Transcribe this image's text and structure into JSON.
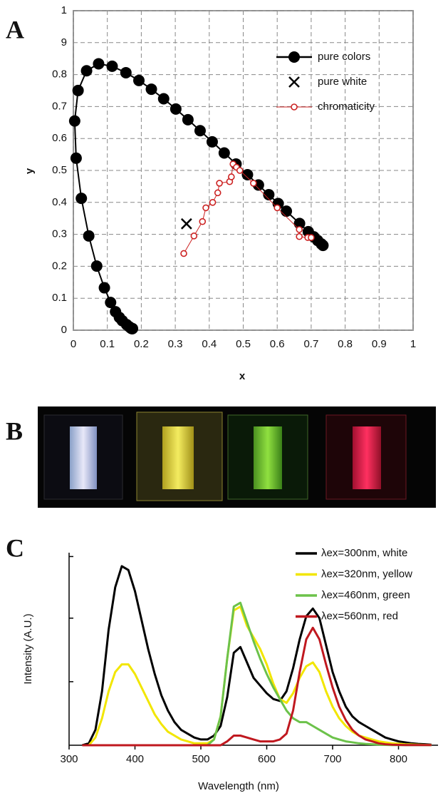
{
  "chart_data": [
    {
      "type": "line",
      "panel_label": "A",
      "xlabel": "x",
      "ylabel": "y",
      "xlim": [
        0,
        1
      ],
      "ylim": [
        0,
        1
      ],
      "xticks": [
        0,
        0.1,
        0.2,
        0.3,
        0.4,
        0.5,
        0.6,
        0.7,
        0.8,
        0.9,
        1
      ],
      "yticks": [
        0,
        0.1,
        0.2,
        0.3,
        0.4,
        0.5,
        0.6,
        0.7,
        0.8,
        {
          "value": 0.9,
          "label": "9"
        },
        1
      ],
      "grid": true,
      "legend": "upper right",
      "series": [
        {
          "name": "pure colors",
          "color": "#000000",
          "marker": "circle",
          "line": true,
          "x": [
            0.1741,
            0.1733,
            0.1714,
            0.1689,
            0.1644,
            0.1566,
            0.144,
            0.1355,
            0.1241,
            0.1096,
            0.0913,
            0.0687,
            0.0454,
            0.0235,
            0.0082,
            0.0039,
            0.0139,
            0.0389,
            0.0743,
            0.1142,
            0.1547,
            0.1929,
            0.2296,
            0.2658,
            0.3016,
            0.3373,
            0.3731,
            0.4087,
            0.4441,
            0.4788,
            0.5125,
            0.5448,
            0.5752,
            0.6029,
            0.627,
            0.6658,
            0.6915,
            0.7079,
            0.719,
            0.73,
            0.7347
          ],
          "values": [
            0.005,
            0.0048,
            0.0051,
            0.0069,
            0.0109,
            0.0177,
            0.0297,
            0.0399,
            0.0578,
            0.0868,
            0.1327,
            0.2007,
            0.295,
            0.4127,
            0.5384,
            0.6548,
            0.7502,
            0.812,
            0.8338,
            0.8262,
            0.8059,
            0.7816,
            0.7543,
            0.7243,
            0.6923,
            0.6589,
            0.6245,
            0.5896,
            0.5547,
            0.5202,
            0.4866,
            0.4544,
            0.4242,
            0.3965,
            0.3725,
            0.334,
            0.3083,
            0.292,
            0.2809,
            0.27,
            0.2653
          ]
        },
        {
          "name": "pure white",
          "color": "#000000",
          "marker": "x",
          "line": false,
          "x": [
            0.333
          ],
          "values": [
            0.333
          ]
        },
        {
          "name": "chromaticity",
          "color": "#cc2222",
          "marker": "open-circle",
          "line": true,
          "x": [
            0.325,
            0.355,
            0.38,
            0.39,
            0.41,
            0.425,
            0.43,
            0.46,
            0.465,
            0.47,
            0.48,
            0.49,
            0.53,
            0.6,
            0.665,
            0.665,
            0.69,
            0.7
          ],
          "values": [
            0.24,
            0.295,
            0.34,
            0.383,
            0.4,
            0.43,
            0.46,
            0.465,
            0.48,
            0.52,
            0.51,
            0.5,
            0.46,
            0.383,
            0.315,
            0.293,
            0.29,
            0.29
          ]
        }
      ]
    },
    {
      "type": "line",
      "panel_label": "C",
      "xlabel": "Wavelength (nm)",
      "ylabel": "Intensity (A.U.)",
      "xlim": [
        300,
        860
      ],
      "ylim": [
        0,
        100
      ],
      "xticks": [
        300,
        400,
        500,
        600,
        700,
        800
      ],
      "grid": false,
      "legend": "upper right",
      "x": [
        320,
        330,
        340,
        350,
        360,
        370,
        380,
        390,
        400,
        410,
        420,
        430,
        440,
        450,
        460,
        470,
        480,
        490,
        500,
        510,
        520,
        530,
        540,
        550,
        560,
        570,
        580,
        590,
        600,
        610,
        620,
        630,
        640,
        650,
        660,
        670,
        680,
        690,
        700,
        710,
        720,
        730,
        740,
        750,
        760,
        770,
        780,
        790,
        800,
        810,
        820,
        830,
        840,
        850
      ],
      "series": [
        {
          "name": "λex=300nm, white",
          "color": "#000000",
          "values": [
            0,
            1,
            8,
            28,
            60,
            82,
            93,
            91,
            80,
            65,
            50,
            37,
            26,
            18,
            12,
            8,
            6,
            4,
            3,
            3,
            5,
            10,
            25,
            48,
            51,
            43,
            35,
            31,
            27,
            24,
            23,
            28,
            40,
            55,
            67,
            71,
            66,
            52,
            38,
            28,
            20,
            15,
            12,
            10,
            8,
            6,
            4,
            3,
            2,
            1.5,
            1,
            0.7,
            0.5,
            0.3
          ]
        },
        {
          "name": "λex=320nm, yellow",
          "color": "#f2e600",
          "values": [
            0,
            0,
            4,
            14,
            28,
            38,
            42,
            42,
            37,
            30,
            23,
            16,
            11,
            7,
            5,
            3,
            2,
            1,
            1,
            1,
            3,
            15,
            45,
            70,
            72,
            62,
            56,
            50,
            42,
            32,
            24,
            22,
            27,
            35,
            41,
            43,
            38,
            28,
            20,
            14,
            10,
            7,
            5,
            4,
            3,
            2,
            1.5,
            1,
            0.8,
            0.5,
            0.4,
            0.3,
            0.2,
            0.1
          ]
        },
        {
          "name": "λex=460nm, green",
          "color": "#6cc24a",
          "values": [
            0,
            0,
            0,
            0,
            0,
            0,
            0,
            0,
            0,
            0,
            0,
            0,
            0,
            0,
            0,
            0,
            0,
            0,
            0,
            0,
            3,
            15,
            45,
            72,
            74,
            64,
            54,
            45,
            37,
            30,
            24,
            18,
            14,
            12,
            12,
            10,
            8,
            6,
            4,
            3,
            2,
            1.5,
            1,
            0.7,
            0.5,
            0.3,
            0.2,
            0.1,
            0.1,
            0.1,
            0.1,
            0.1,
            0.1,
            0.1
          ]
        },
        {
          "name": "λex=560nm, red",
          "color": "#c0181f",
          "values": [
            0,
            0,
            0,
            0,
            0,
            0,
            0,
            0,
            0,
            0,
            0,
            0,
            0,
            0,
            0,
            0,
            0,
            0,
            0,
            0,
            0,
            0,
            2,
            5,
            5,
            4,
            3,
            2,
            2,
            2,
            3,
            6,
            18,
            38,
            55,
            61,
            55,
            42,
            30,
            20,
            13,
            8,
            5,
            3,
            2,
            1,
            0.5,
            0.3,
            0.2,
            0.1,
            0.1,
            0.1,
            0.1,
            0.1
          ]
        }
      ]
    }
  ],
  "photo": {
    "label": "B"
  }
}
